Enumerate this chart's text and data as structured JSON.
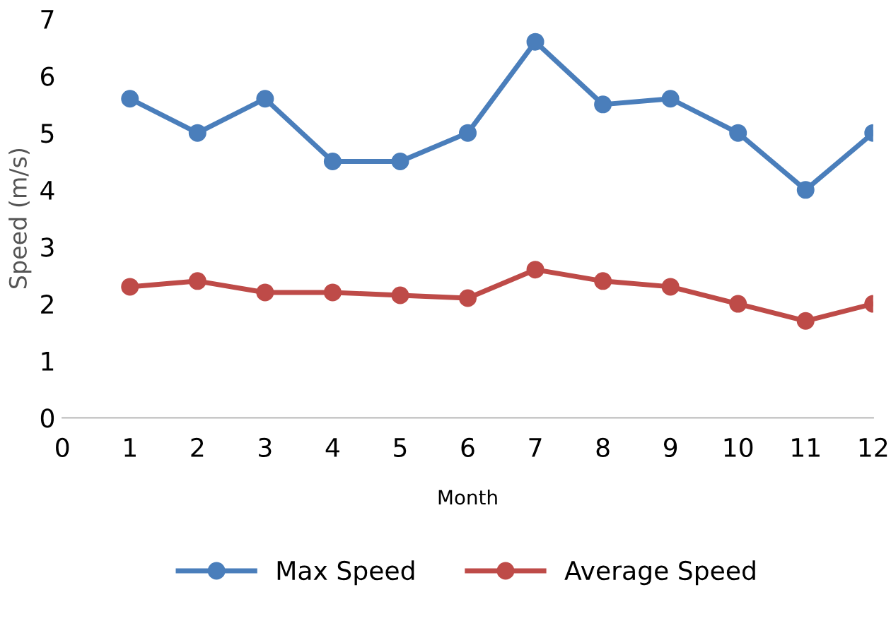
{
  "chart_data": {
    "type": "line",
    "xlabel": "Month",
    "ylabel": "Speed (m/s)",
    "x": [
      1,
      2,
      3,
      4,
      5,
      6,
      7,
      8,
      9,
      10,
      11,
      12
    ],
    "series": [
      {
        "name": "Max Speed",
        "color": "#4a7ebb",
        "values": [
          5.6,
          5.0,
          5.6,
          4.5,
          4.5,
          5.0,
          6.6,
          5.5,
          5.6,
          5.0,
          4.0,
          5.0
        ]
      },
      {
        "name": "Average Speed",
        "color": "#be4b48",
        "values": [
          2.3,
          2.4,
          2.2,
          2.2,
          2.15,
          2.1,
          2.6,
          2.4,
          2.3,
          2.0,
          1.7,
          2.0
        ]
      }
    ],
    "xlim": [
      0,
      12
    ],
    "xticks": [
      0,
      1,
      2,
      3,
      4,
      5,
      6,
      7,
      8,
      9,
      10,
      11,
      12
    ],
    "ylim": [
      0,
      7
    ],
    "yticks": [
      0,
      1,
      2,
      3,
      4,
      5,
      6,
      7
    ],
    "grid": false,
    "legend": "bottom",
    "marker": "circle",
    "line_style": "solid"
  }
}
